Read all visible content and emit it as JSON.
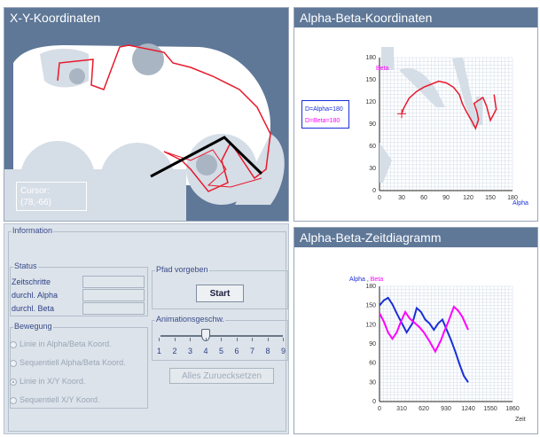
{
  "xy_panel": {
    "title": "X-Y-Koordinaten",
    "cursor_label": "Cursor:",
    "cursor_value": "(78,-66)"
  },
  "ab_panel": {
    "title": "Alpha-Beta-Koordinaten",
    "y_axis_name": "Beta",
    "x_axis_name": "Alpha",
    "legend_alpha": "D=Alpha=180",
    "legend_beta": "D=Beta=180"
  },
  "time_panel": {
    "title": "Alpha-Beta-Zeitdiagramm",
    "legend_alpha": "Alpha",
    "legend_sep": ",",
    "legend_beta": "Beta",
    "x_axis_name": "Zeit"
  },
  "controls": {
    "information_label": "Information",
    "status_label": "Status",
    "status_fields": [
      {
        "label": "Zeitschritte",
        "value": ""
      },
      {
        "label": "durchl. Alpha",
        "value": ""
      },
      {
        "label": "durchl. Beta",
        "value": ""
      }
    ],
    "path_group_label": "Pfad vorgeben",
    "start_button": "Start",
    "speed_label": "Animationsgeschw.",
    "speed_ticks": [
      "1",
      "2",
      "3",
      "4",
      "5",
      "6",
      "7",
      "8",
      "9"
    ],
    "speed_value": 4,
    "reset_button": "Alles Zuruecksetzen",
    "movement_label": "Bewegung",
    "movement_options": [
      {
        "label": "Linie in Alpha/Beta Koord.",
        "checked": false
      },
      {
        "label": "Sequentiell Alpha/Beta Koord.",
        "checked": false
      },
      {
        "label": "Linie in X/Y Koord.",
        "checked": true
      },
      {
        "label": "Sequentiell X/Y Koord.",
        "checked": false
      }
    ]
  },
  "colors": {
    "title_bar": "#5f7898",
    "obstacle": "#d5dde6",
    "obstacle_dark": "#a9b5c2",
    "path_red": "#e8192c",
    "arm_black": "#000000",
    "alpha_blue": "#1a2fd8",
    "beta_magenta": "#ff00ff"
  },
  "chart_data": [
    {
      "type": "line",
      "title": "Alpha-Beta-Koordinaten",
      "xlabel": "Alpha",
      "ylabel": "Beta",
      "xlim": [
        0,
        180
      ],
      "ylim": [
        0,
        180
      ],
      "x_ticks": [
        "0",
        "30",
        "60",
        "90",
        "120",
        "150",
        "180"
      ],
      "y_ticks": [
        "0",
        "30",
        "60",
        "90",
        "120",
        "150",
        "180"
      ],
      "grid": true,
      "series": [
        {
          "color": "#e8192c",
          "x": [
            30,
            33,
            40,
            50,
            60,
            70,
            80,
            90,
            100,
            108,
            112,
            118,
            125,
            130,
            134,
            132,
            128,
            140,
            145,
            150,
            158,
            155
          ],
          "y": [
            104,
            112,
            125,
            134,
            140,
            144,
            148,
            146,
            140,
            130,
            118,
            106,
            94,
            84,
            96,
            106,
            118,
            126,
            114,
            95,
            110,
            130
          ]
        }
      ],
      "marker": {
        "x": 30,
        "y": 104
      }
    },
    {
      "type": "line",
      "title": "Alpha-Beta-Zeitdiagramm",
      "xlabel": "Zeit",
      "ylabel": "",
      "xlim": [
        0,
        1860
      ],
      "ylim": [
        0,
        180
      ],
      "x_ticks": [
        "0",
        "310",
        "620",
        "930",
        "1240",
        "1550",
        "1860"
      ],
      "y_ticks": [
        "0",
        "30",
        "60",
        "90",
        "120",
        "150",
        "180"
      ],
      "grid": true,
      "legend": "top-left",
      "series": [
        {
          "name": "Alpha",
          "color": "#1a2fd8",
          "x": [
            0,
            60,
            120,
            180,
            240,
            300,
            380,
            460,
            520,
            580,
            640,
            700,
            760,
            820,
            880,
            940,
            1000,
            1060,
            1120,
            1180,
            1240
          ],
          "y": [
            150,
            158,
            162,
            152,
            138,
            125,
            108,
            122,
            146,
            140,
            128,
            122,
            112,
            122,
            128,
            112,
            96,
            78,
            58,
            40,
            30
          ]
        },
        {
          "name": "Beta",
          "color": "#ff00ff",
          "x": [
            0,
            60,
            120,
            180,
            240,
            300,
            360,
            420,
            500,
            560,
            620,
            700,
            780,
            860,
            900,
            960,
            1040,
            1100,
            1160,
            1240
          ],
          "y": [
            138,
            125,
            108,
            98,
            108,
            125,
            140,
            130,
            122,
            116,
            108,
            94,
            78,
            96,
            108,
            124,
            148,
            142,
            132,
            112
          ]
        }
      ]
    }
  ]
}
